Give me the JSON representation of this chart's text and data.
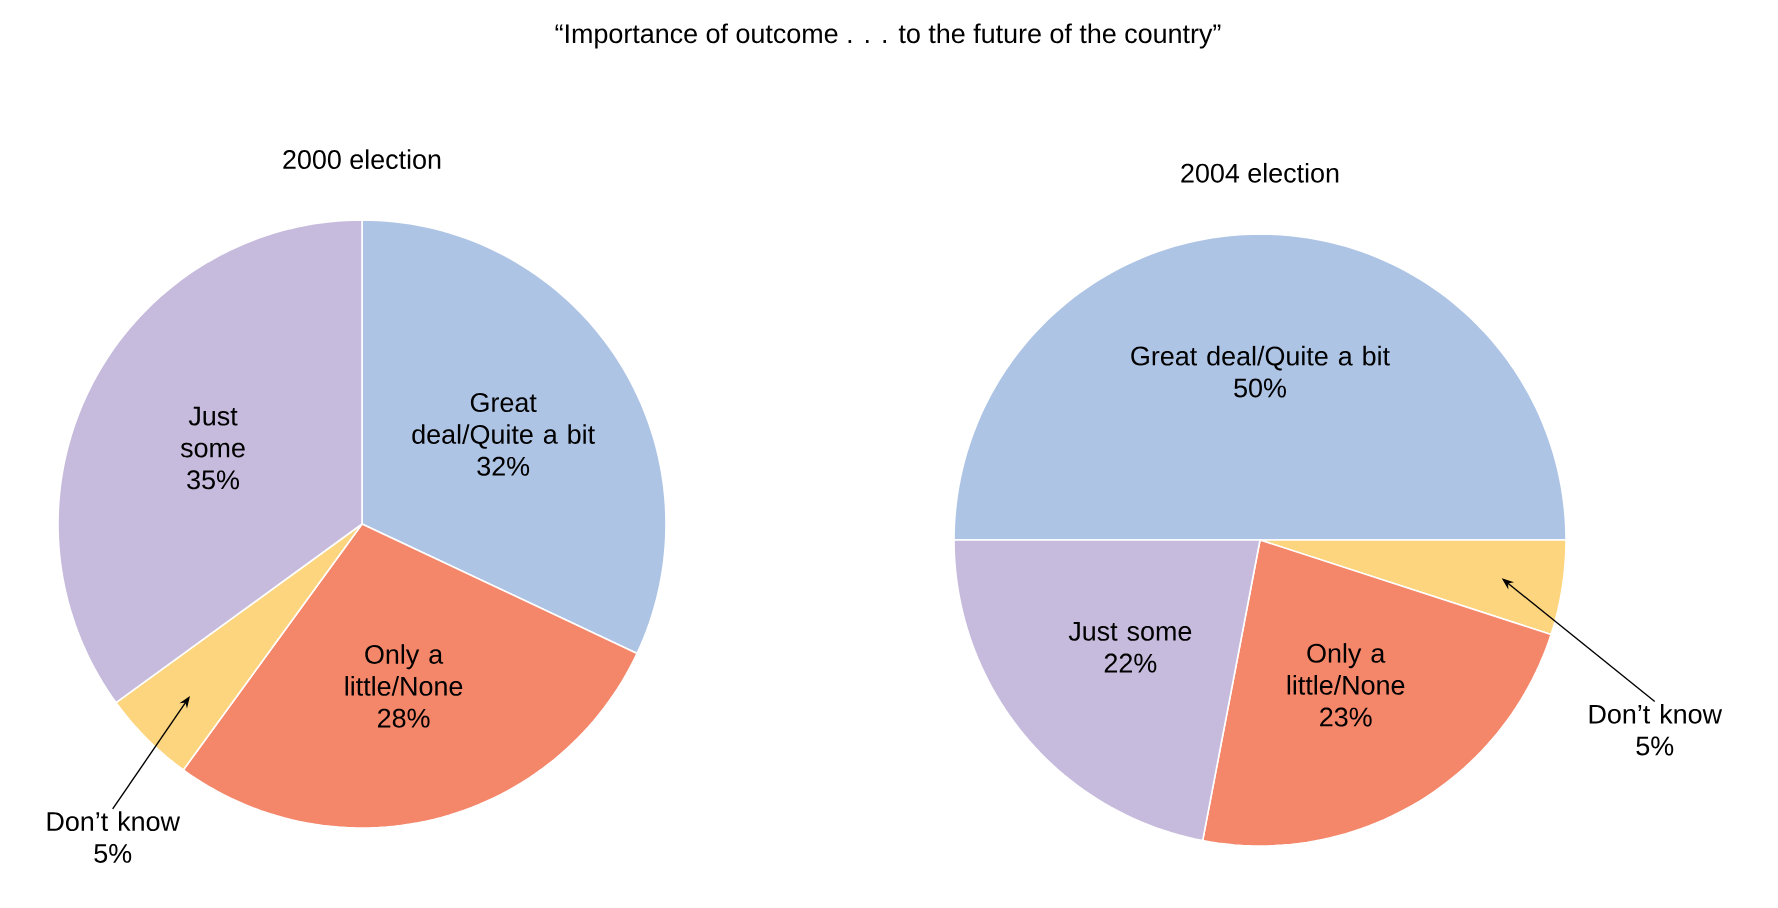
{
  "chart_data": [
    {
      "type": "pie",
      "title": "“Importance of outcome . . . to the future of the country”",
      "subtitle": "2000 election",
      "categories": [
        "Great deal/Quite a bit",
        "Only a little/None",
        "Don’t know",
        "Just some"
      ],
      "values": [
        32,
        28,
        5,
        35
      ],
      "colors": [
        "#aec4e5",
        "#f4866a",
        "#fdd57e",
        "#c6bbdc"
      ],
      "value_labels": [
        "32%",
        "28%",
        "5%",
        "35%"
      ]
    },
    {
      "type": "pie",
      "subtitle": "2004 election",
      "categories": [
        "Great deal/Quite a bit",
        "Don’t know",
        "Only a little/None",
        "Just some"
      ],
      "values": [
        50,
        5,
        23,
        22
      ],
      "colors": [
        "#aec4e5",
        "#fdd57e",
        "#f4866a",
        "#c6bbdc"
      ],
      "value_labels": [
        "50%",
        "5%",
        "23%",
        "22%"
      ]
    }
  ]
}
